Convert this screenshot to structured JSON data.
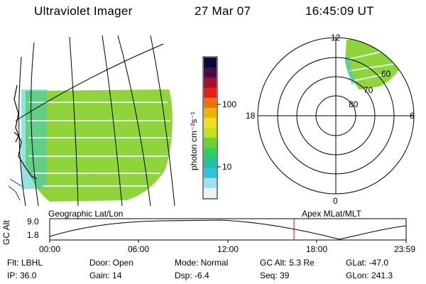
{
  "header": {
    "instrument": "Ultraviolet Imager",
    "date": "27 Mar 07",
    "time": "16:45:09 UT"
  },
  "colorbar": {
    "unit_label": "photon cm⁻²s⁻¹",
    "tick_100": "100",
    "tick_10": "10",
    "colors": [
      "#0a0a3a",
      "#4a0a4a",
      "#a0102a",
      "#e0201a",
      "#f07010",
      "#f0b010",
      "#f0e020",
      "#c0e020",
      "#70d030",
      "#30d060",
      "#20c0a0",
      "#30c0e0",
      "#a0e0f0",
      "#e8f4f8"
    ]
  },
  "map_panel": {
    "label": "Geographic Lat/Lon"
  },
  "polar_panel": {
    "label": "Apex MLat/MLT",
    "mlt_12": "12",
    "mlt_18": "18",
    "mlt_6": "6",
    "mlt_0": "0",
    "lat_60": "60",
    "lat_70": "70",
    "lat_80": "80"
  },
  "altitude_plot": {
    "ylabel": "GC Alt",
    "ytick_high": "9.0",
    "ytick_low": "1.8",
    "xticks": [
      "00:00",
      "06:00",
      "12:00",
      "18:00",
      "23:59"
    ],
    "marker_time": "16:45",
    "marker_color": "#e01010"
  },
  "status": {
    "flt": "Flt: LBHL",
    "ip": "IP: 36.0",
    "door": "Door: Open",
    "gain": "Gain: 14",
    "mode": "Mode: Normal",
    "dsp": "Dsp:   -6.4",
    "gc_alt": "GC Alt: 5.3 Re",
    "seq": "Seq: 39",
    "glat": "GLat: -47.0",
    "glon": "GLon: 241.3"
  },
  "image_colors": {
    "fill_main": "#8ed43a",
    "fill_alt": "#6cc844",
    "fill_edge": "#40c8c8"
  }
}
